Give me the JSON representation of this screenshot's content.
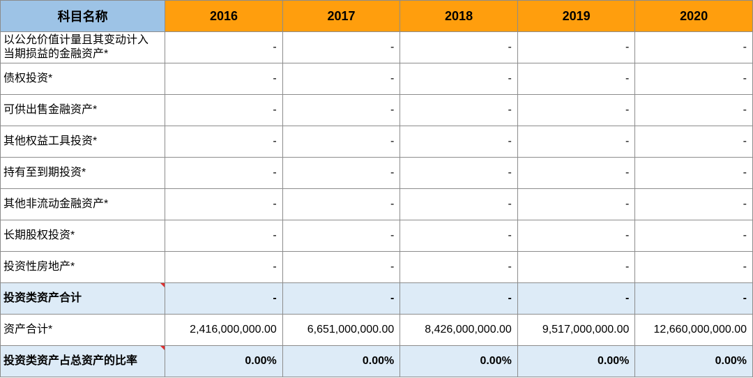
{
  "header": {
    "name_label": "科目名称",
    "years": [
      "2016",
      "2017",
      "2018",
      "2019",
      "2020"
    ]
  },
  "rows": [
    {
      "label": "以公允价值计量且其变动计入当期损益的金融资产*",
      "values": [
        "-",
        "-",
        "-",
        "-",
        "-"
      ]
    },
    {
      "label": "债权投资*",
      "values": [
        "-",
        "-",
        "-",
        "-",
        "-"
      ]
    },
    {
      "label": "可供出售金融资产*",
      "values": [
        "-",
        "-",
        "-",
        "-",
        "-"
      ]
    },
    {
      "label": "其他权益工具投资*",
      "values": [
        "-",
        "-",
        "-",
        "-",
        "-"
      ]
    },
    {
      "label": "持有至到期投资*",
      "values": [
        "-",
        "-",
        "-",
        "-",
        "-"
      ]
    },
    {
      "label": "其他非流动金融资产*",
      "values": [
        "-",
        "-",
        "-",
        "-",
        "-"
      ]
    },
    {
      "label": "长期股权投资*",
      "values": [
        "-",
        "-",
        "-",
        "-",
        "-"
      ]
    },
    {
      "label": "投资性房地产*",
      "values": [
        "-",
        "-",
        "-",
        "-",
        "-"
      ]
    },
    {
      "label": "投资类资产合计",
      "values": [
        "-",
        "-",
        "-",
        "-",
        "-"
      ]
    },
    {
      "label": "资产合计*",
      "values": [
        "2,416,000,000.00",
        "6,651,000,000.00",
        "8,426,000,000.00",
        "9,517,000,000.00",
        "12,660,000,000.00"
      ]
    },
    {
      "label": "投资类资产占总资产的比率",
      "values": [
        "0.00%",
        "0.00%",
        "0.00%",
        "0.00%",
        "0.00%"
      ]
    }
  ],
  "colors": {
    "header_name_bg": "#9dc3e6",
    "header_year_bg": "#ff9e0d",
    "summary_bg": "#ddebf7",
    "comment_marker": "#e03030"
  }
}
